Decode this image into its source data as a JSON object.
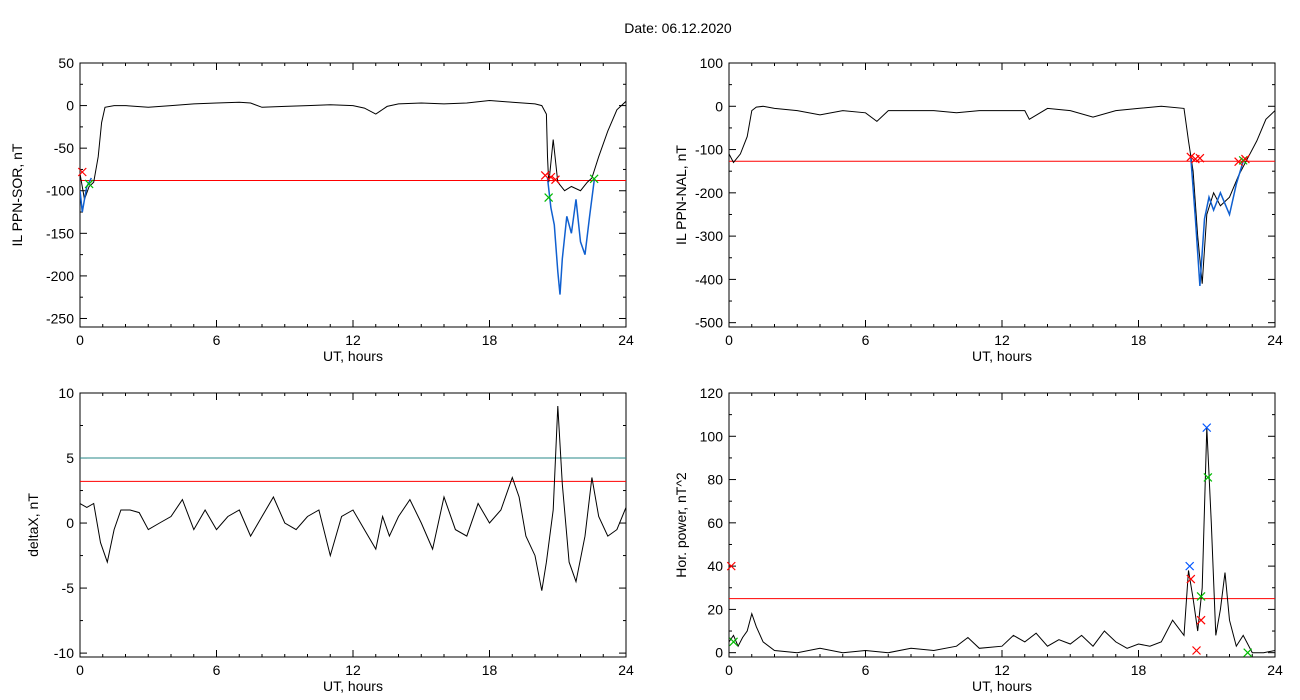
{
  "page_title": "Date:  06.12.2020",
  "chart_data": [
    {
      "type": "line",
      "ylabel": "IL PPN-SOR, nT",
      "xlabel": "UT, hours",
      "xlim": [
        0,
        24
      ],
      "ylim": [
        -260,
        50
      ],
      "xticks": [
        0,
        6,
        12,
        18,
        24
      ],
      "yticks": [
        50,
        0,
        -50,
        -100,
        -150,
        -200,
        -250
      ],
      "threshold": -88,
      "series": [
        {
          "color": "#000000",
          "x": [
            0,
            0.2,
            0.4,
            0.6,
            0.8,
            0.95,
            1.1,
            1.5,
            2,
            3,
            4,
            5,
            6,
            7,
            7.5,
            8,
            9,
            10,
            11,
            12,
            12.5,
            13,
            13.5,
            14,
            15,
            16,
            17,
            18,
            19,
            20,
            20.3,
            20.5,
            20.55,
            20.6,
            20.65,
            20.8,
            21,
            21.3,
            21.6,
            22,
            22.3,
            22.5,
            22.8,
            23.2,
            23.6,
            24
          ],
          "y": [
            -80,
            -110,
            -95,
            -90,
            -60,
            -20,
            -2,
            0,
            0,
            -2,
            0,
            2,
            3,
            4,
            3,
            -2,
            -1,
            0,
            1,
            0,
            -3,
            -10,
            -1,
            2,
            3,
            2,
            3,
            6,
            4,
            2,
            0,
            -10,
            -60,
            -90,
            -80,
            -40,
            -90,
            -100,
            -95,
            -100,
            -90,
            -85,
            -60,
            -30,
            -5,
            5
          ]
        },
        {
          "color": "#1060d0",
          "x": [
            0,
            0.1,
            0.2,
            0.3,
            0.4,
            0.5
          ],
          "y": [
            -100,
            -125,
            -110,
            -95,
            -90,
            -85
          ]
        },
        {
          "color": "#1060d0",
          "x": [
            20.55,
            20.7,
            20.85,
            21.0,
            21.1,
            21.2,
            21.4,
            21.6,
            21.8,
            22.0,
            22.2,
            22.4,
            22.6
          ],
          "y": [
            -85,
            -120,
            -140,
            -195,
            -222,
            -180,
            -130,
            -150,
            -110,
            -160,
            -175,
            -130,
            -88
          ]
        }
      ],
      "markers": [
        {
          "x": 0.1,
          "y": -78,
          "color": "#ff0000"
        },
        {
          "x": 0.4,
          "y": -92,
          "color": "#00bb00"
        },
        {
          "x": 20.45,
          "y": -82,
          "color": "#ff0000"
        },
        {
          "x": 20.6,
          "y": -108,
          "color": "#00bb00"
        },
        {
          "x": 20.7,
          "y": -84,
          "color": "#ff0000"
        },
        {
          "x": 20.9,
          "y": -87,
          "color": "#ff0000"
        },
        {
          "x": 22.6,
          "y": -86,
          "color": "#00bb00"
        }
      ]
    },
    {
      "type": "line",
      "ylabel": "IL PPN-NAL, nT",
      "xlabel": "UT, hours",
      "xlim": [
        0,
        24
      ],
      "ylim": [
        -510,
        100
      ],
      "xticks": [
        0,
        6,
        12,
        18,
        24
      ],
      "yticks": [
        100,
        0,
        -100,
        -200,
        -300,
        -400,
        -500
      ],
      "threshold": -127,
      "series": [
        {
          "color": "#000000",
          "x": [
            0,
            0.2,
            0.5,
            0.8,
            1.0,
            1.2,
            1.5,
            2,
            3,
            4,
            5,
            6,
            6.5,
            7,
            8,
            9,
            10,
            11,
            12,
            13,
            13.2,
            14,
            15,
            16,
            17,
            18,
            19,
            20,
            20.2,
            20.4,
            20.6,
            20.8,
            21,
            21.3,
            21.6,
            22,
            22.4,
            22.8,
            23.2,
            23.6,
            24
          ],
          "y": [
            -110,
            -130,
            -110,
            -70,
            -10,
            -2,
            0,
            -5,
            -10,
            -20,
            -10,
            -15,
            -35,
            -10,
            -10,
            -10,
            -15,
            -10,
            -10,
            -10,
            -30,
            -5,
            -10,
            -25,
            -10,
            -5,
            0,
            -5,
            -80,
            -150,
            -300,
            -410,
            -250,
            -200,
            -230,
            -210,
            -160,
            -120,
            -80,
            -30,
            -10
          ]
        },
        {
          "color": "#1060d0",
          "x": [
            20.3,
            20.5,
            20.7,
            20.9,
            21.1,
            21.3,
            21.6,
            22,
            22.3,
            22.6
          ],
          "y": [
            -118,
            -260,
            -415,
            -260,
            -210,
            -240,
            -200,
            -250,
            -180,
            -127
          ]
        }
      ],
      "markers": [
        {
          "x": 20.3,
          "y": -117,
          "color": "#ff0000"
        },
        {
          "x": 20.5,
          "y": -122,
          "color": "#ff0000"
        },
        {
          "x": 20.7,
          "y": -120,
          "color": "#ff0000"
        },
        {
          "x": 22.4,
          "y": -128,
          "color": "#ff0000"
        },
        {
          "x": 22.6,
          "y": -125,
          "color": "#00bb00"
        },
        {
          "x": 22.7,
          "y": -122,
          "color": "#ff0000"
        }
      ]
    },
    {
      "type": "line",
      "ylabel": "deltaX, nT",
      "xlabel": "UT, hours",
      "xlim": [
        0,
        24
      ],
      "ylim": [
        -10.3,
        10
      ],
      "xticks": [
        0,
        6,
        12,
        18,
        24
      ],
      "yticks": [
        10,
        5,
        0,
        -5,
        -10
      ],
      "threshold": 3.2,
      "threshold2": 5.0,
      "series": [
        {
          "color": "#000000",
          "x": [
            0,
            0.3,
            0.6,
            0.9,
            1.2,
            1.5,
            1.8,
            2.2,
            2.6,
            3,
            3.5,
            4,
            4.5,
            5,
            5.5,
            6,
            6.5,
            7,
            7.5,
            8,
            8.5,
            9,
            9.5,
            10,
            10.5,
            11,
            11.5,
            12,
            12.5,
            13,
            13.3,
            13.6,
            14,
            14.5,
            15,
            15.5,
            16,
            16.5,
            17,
            17.5,
            18,
            18.5,
            19,
            19.3,
            19.6,
            20,
            20.3,
            20.5,
            20.8,
            21.0,
            21.2,
            21.5,
            21.8,
            22.2,
            22.5,
            22.8,
            23.2,
            23.6,
            24
          ],
          "y": [
            1.5,
            1.2,
            1.5,
            -1.5,
            -3,
            -0.5,
            1,
            1,
            0.8,
            -0.5,
            0,
            0.5,
            1.8,
            -0.5,
            1,
            -0.5,
            0.5,
            1,
            -1,
            0.5,
            2,
            0,
            -0.5,
            0.5,
            1,
            -2.5,
            0.5,
            1,
            -0.5,
            -2,
            0.5,
            -1,
            0.5,
            1.8,
            0,
            -2,
            2,
            -0.5,
            -1,
            1.5,
            0,
            1,
            3.5,
            2,
            -1,
            -2.5,
            -5.2,
            -3,
            1,
            9,
            3,
            -3,
            -4.5,
            -1,
            3.5,
            0.5,
            -1,
            -0.5,
            1.2
          ]
        }
      ],
      "markers": []
    },
    {
      "type": "line",
      "ylabel": "Hor. power, nT^2",
      "xlabel": "UT, hours",
      "xlim": [
        0,
        24
      ],
      "ylim": [
        -2,
        120
      ],
      "xticks": [
        0,
        6,
        12,
        18,
        24
      ],
      "yticks": [
        120,
        100,
        80,
        60,
        40,
        20,
        0
      ],
      "threshold": 25,
      "series": [
        {
          "color": "#000000",
          "x": [
            0,
            0.2,
            0.4,
            0.6,
            0.8,
            1.0,
            1.2,
            1.5,
            2,
            3,
            4,
            5,
            6,
            7,
            8,
            9,
            10,
            10.5,
            11,
            12,
            12.5,
            13,
            13.5,
            14,
            14.5,
            15,
            15.5,
            16,
            16.5,
            17,
            17.5,
            18,
            18.5,
            19,
            19.5,
            20,
            20.2,
            20.4,
            20.6,
            20.8,
            21.0,
            21.2,
            21.4,
            21.6,
            21.8,
            22.0,
            22.3,
            22.6,
            23,
            23.5,
            24
          ],
          "y": [
            5,
            8,
            3,
            7,
            10,
            18,
            12,
            5,
            1,
            0,
            2,
            0,
            1,
            0,
            2,
            1,
            3,
            7,
            2,
            3,
            8,
            5,
            9,
            3,
            6,
            4,
            8,
            3,
            10,
            5,
            2,
            4,
            3,
            5,
            15,
            8,
            38,
            25,
            10,
            30,
            104,
            60,
            8,
            20,
            37,
            15,
            3,
            8,
            0,
            0,
            1
          ]
        }
      ],
      "markers": [
        {
          "x": 0.1,
          "y": 40,
          "color": "#ff0000"
        },
        {
          "x": 0.2,
          "y": 5,
          "color": "#00bb00"
        },
        {
          "x": 20.25,
          "y": 40,
          "color": "#0055ff"
        },
        {
          "x": 20.3,
          "y": 34,
          "color": "#ff0000"
        },
        {
          "x": 20.55,
          "y": 1,
          "color": "#ff0000"
        },
        {
          "x": 20.75,
          "y": 15,
          "color": "#ff0000"
        },
        {
          "x": 20.75,
          "y": 26,
          "color": "#00bb00"
        },
        {
          "x": 21.0,
          "y": 104,
          "color": "#0055ff"
        },
        {
          "x": 21.05,
          "y": 81,
          "color": "#00bb00"
        },
        {
          "x": 22.8,
          "y": 0,
          "color": "#00bb00"
        }
      ]
    }
  ]
}
